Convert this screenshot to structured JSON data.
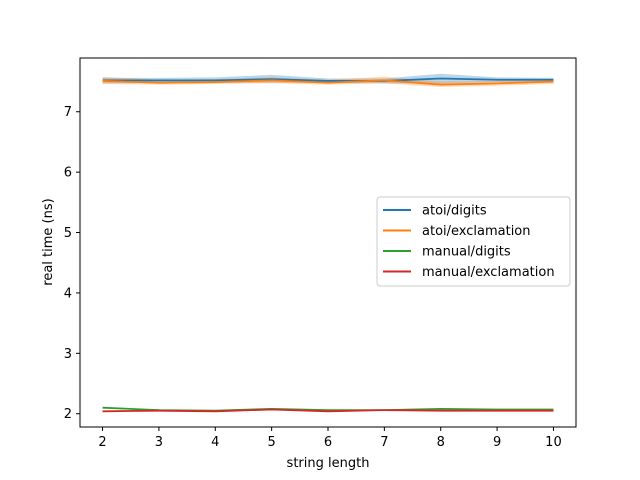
{
  "chart_data": {
    "type": "line",
    "title": "",
    "xlabel": "string length",
    "ylabel": "real time (ns)",
    "x": [
      2,
      3,
      4,
      5,
      6,
      7,
      8,
      9,
      10
    ],
    "xlim": [
      1.6,
      10.4
    ],
    "ylim": [
      1.78,
      7.89
    ],
    "xticks": [
      "2",
      "3",
      "4",
      "5",
      "6",
      "7",
      "8",
      "9",
      "10"
    ],
    "yticks": [
      "2",
      "3",
      "4",
      "5",
      "6",
      "7"
    ],
    "legend_position": "center-right",
    "grid": false,
    "series": [
      {
        "name": "atoi/digits",
        "color": "#1f77b4",
        "values": [
          7.52,
          7.52,
          7.52,
          7.54,
          7.51,
          7.51,
          7.55,
          7.53,
          7.53
        ],
        "lower": [
          7.47,
          7.48,
          7.48,
          7.48,
          7.48,
          7.47,
          7.47,
          7.49,
          7.49
        ],
        "upper": [
          7.56,
          7.56,
          7.57,
          7.61,
          7.55,
          7.55,
          7.63,
          7.57,
          7.56
        ]
      },
      {
        "name": "atoi/exclamation",
        "color": "#ff7f0e",
        "values": [
          7.51,
          7.48,
          7.49,
          7.52,
          7.48,
          7.52,
          7.45,
          7.47,
          7.5
        ],
        "lower": [
          7.46,
          7.45,
          7.46,
          7.47,
          7.45,
          7.47,
          7.41,
          7.43,
          7.46
        ],
        "upper": [
          7.58,
          7.53,
          7.54,
          7.57,
          7.53,
          7.58,
          7.5,
          7.51,
          7.54
        ]
      },
      {
        "name": "manual/digits",
        "color": "#2ca02c",
        "values": [
          2.1,
          2.06,
          2.05,
          2.08,
          2.06,
          2.06,
          2.08,
          2.07,
          2.07
        ],
        "lower": [
          2.09,
          2.05,
          2.04,
          2.07,
          2.05,
          2.05,
          2.07,
          2.06,
          2.06
        ],
        "upper": [
          2.11,
          2.07,
          2.06,
          2.09,
          2.07,
          2.07,
          2.09,
          2.08,
          2.08
        ]
      },
      {
        "name": "manual/exclamation",
        "color": "#d62728",
        "values": [
          2.04,
          2.05,
          2.04,
          2.07,
          2.04,
          2.06,
          2.05,
          2.05,
          2.05
        ],
        "lower": [
          2.03,
          2.04,
          2.03,
          2.06,
          2.03,
          2.05,
          2.04,
          2.04,
          2.04
        ],
        "upper": [
          2.05,
          2.06,
          2.05,
          2.08,
          2.05,
          2.07,
          2.06,
          2.06,
          2.06
        ]
      }
    ]
  }
}
